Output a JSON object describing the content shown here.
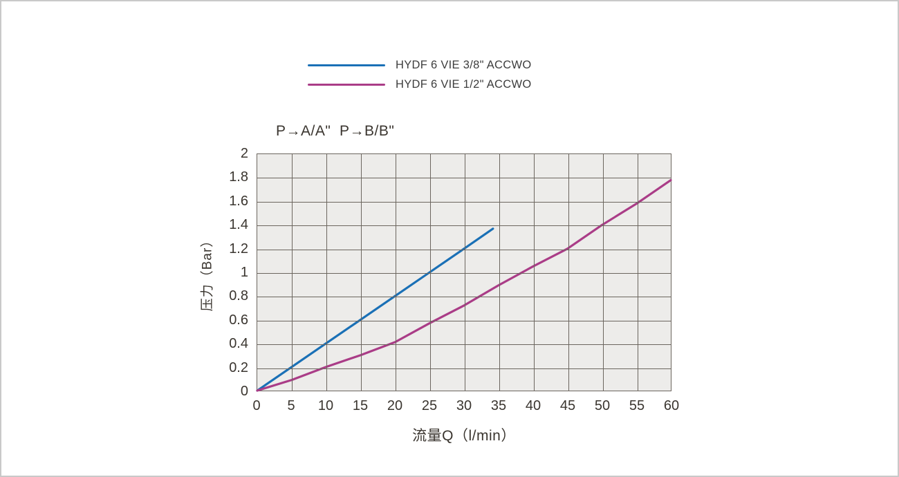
{
  "panel": {
    "background": "#ffffff",
    "border_color": "#c9c9c9",
    "plot_background": "#edecea",
    "grid_color": "#6b655e",
    "text_color": "#3a352f"
  },
  "legend": {
    "items": [
      {
        "label": "HYDF 6 VIE 3/8\" ACCWO",
        "color": "#1a70b6"
      },
      {
        "label": "HYDF 6 VIE 1/2\" ACCWO",
        "color": "#aa3c87"
      }
    ]
  },
  "chart_data": {
    "type": "line",
    "title": "P→A/A\"  P→B/B\"",
    "xlabel": "流量Q（l/min）",
    "ylabel": "压力（Bar）",
    "xlim": [
      0,
      60
    ],
    "ylim": [
      0,
      2
    ],
    "x_ticks": [
      0,
      5,
      10,
      15,
      20,
      25,
      30,
      35,
      40,
      45,
      50,
      55,
      60
    ],
    "y_ticks": [
      0,
      0.2,
      0.4,
      0.6,
      0.8,
      1,
      1.2,
      1.4,
      1.6,
      1.8,
      2
    ],
    "y_tick_labels": [
      "0",
      "0.2",
      "0.4",
      "0.6",
      "0.8",
      "1",
      "1.2",
      "1.4",
      "1.6",
      "1.8",
      "2"
    ],
    "grid": true,
    "legend_position": "top",
    "series": [
      {
        "name": "HYDF 6 VIE 3/8\" ACCWO",
        "color": "#1a70b6",
        "x": [
          0,
          5,
          10,
          15,
          20,
          25,
          30,
          34.2
        ],
        "y": [
          0,
          0.2,
          0.4,
          0.6,
          0.8,
          1.0,
          1.2,
          1.37
        ]
      },
      {
        "name": "HYDF 6 VIE 1/2\" ACCWO",
        "color": "#aa3c87",
        "x": [
          0,
          5,
          10,
          15,
          20,
          25,
          30,
          35,
          40,
          45,
          50,
          55,
          60
        ],
        "y": [
          0,
          0.09,
          0.2,
          0.3,
          0.41,
          0.57,
          0.72,
          0.89,
          1.05,
          1.2,
          1.4,
          1.58,
          1.78
        ]
      }
    ]
  }
}
